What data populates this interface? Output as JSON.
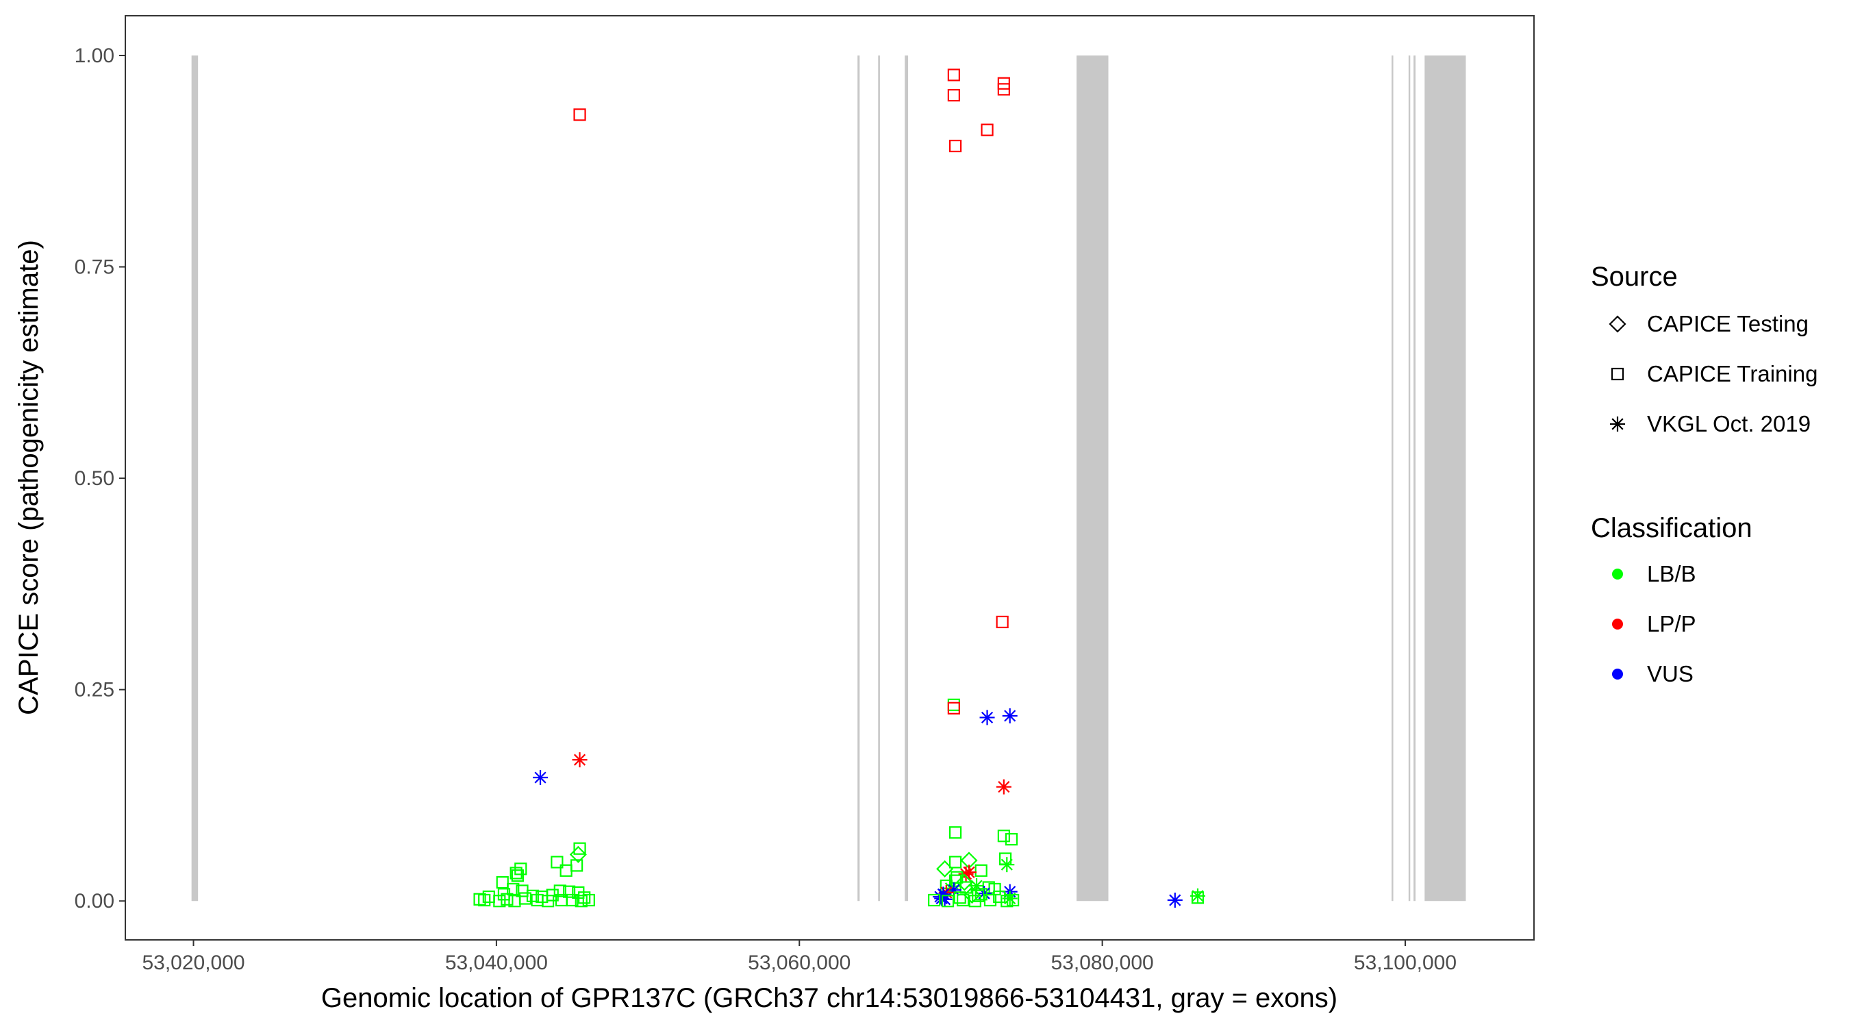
{
  "chart_data": {
    "type": "scatter",
    "title": "",
    "xlabel": "Genomic location of GPR137C (GRCh37 chr14:53019866-53104431, gray = exons)",
    "ylabel": "CAPICE score (pathogenicity estimate)",
    "xlim": [
      53015500,
      53108500
    ],
    "ylim": [
      -0.046,
      1.047
    ],
    "x_ticks": [
      53020000,
      53040000,
      53060000,
      53080000,
      53100000
    ],
    "x_tick_labels": [
      "53,020,000",
      "53,040,000",
      "53,060,000",
      "53,080,000",
      "53,100,000"
    ],
    "y_ticks": [
      0,
      0.25,
      0.5,
      0.75,
      1.0
    ],
    "y_tick_labels": [
      "0.00",
      "0.25",
      "0.50",
      "0.75",
      "1.00"
    ],
    "grid": false,
    "legend_position": "right",
    "exons": [
      [
        53019870,
        53020300
      ],
      [
        53063840,
        53063980
      ],
      [
        53065200,
        53065320
      ],
      [
        53066960,
        53067180
      ],
      [
        53078300,
        53080400
      ],
      [
        53099100,
        53099210
      ],
      [
        53100220,
        53100330
      ],
      [
        53100550,
        53100680
      ],
      [
        53101280,
        53104000
      ]
    ],
    "legends": [
      {
        "title": "Source",
        "entries": [
          {
            "label": "CAPICE Testing",
            "shape": "diamond"
          },
          {
            "label": "CAPICE Training",
            "shape": "square"
          },
          {
            "label": "VKGL Oct. 2019",
            "shape": "asterisk"
          }
        ]
      },
      {
        "title": "Classification",
        "entries": [
          {
            "label": "LB/B",
            "color": "#00ff00"
          },
          {
            "label": "LP/P",
            "color": "#ff0000"
          },
          {
            "label": "VUS",
            "color": "#0000ff"
          }
        ]
      }
    ],
    "colors": {
      "LB/B": "#00ff00",
      "LP/P": "#ff0000",
      "VUS": "#0000ff",
      "exon": "#c8c8c8"
    },
    "points": [
      {
        "x": 53045500,
        "y": 0.93,
        "source": "CAPICE Training",
        "class": "LP/P"
      },
      {
        "x": 53070200,
        "y": 0.977,
        "source": "CAPICE Training",
        "class": "LP/P"
      },
      {
        "x": 53070200,
        "y": 0.953,
        "source": "CAPICE Training",
        "class": "LP/P"
      },
      {
        "x": 53073500,
        "y": 0.967,
        "source": "CAPICE Training",
        "class": "LP/P"
      },
      {
        "x": 53073500,
        "y": 0.96,
        "source": "CAPICE Training",
        "class": "LP/P"
      },
      {
        "x": 53072400,
        "y": 0.912,
        "source": "CAPICE Training",
        "class": "LP/P"
      },
      {
        "x": 53070300,
        "y": 0.893,
        "source": "CAPICE Training",
        "class": "LP/P"
      },
      {
        "x": 53073400,
        "y": 0.33,
        "source": "CAPICE Training",
        "class": "LP/P"
      },
      {
        "x": 53070200,
        "y": 0.232,
        "source": "CAPICE Training",
        "class": "LB/B"
      },
      {
        "x": 53070200,
        "y": 0.228,
        "source": "CAPICE Training",
        "class": "LP/P"
      },
      {
        "x": 53072400,
        "y": 0.217,
        "source": "VKGL Oct. 2019",
        "class": "VUS"
      },
      {
        "x": 53073900,
        "y": 0.219,
        "source": "VKGL Oct. 2019",
        "class": "VUS"
      },
      {
        "x": 53045500,
        "y": 0.167,
        "source": "VKGL Oct. 2019",
        "class": "LP/P"
      },
      {
        "x": 53042900,
        "y": 0.146,
        "source": "VKGL Oct. 2019",
        "class": "VUS"
      },
      {
        "x": 53073500,
        "y": 0.135,
        "source": "VKGL Oct. 2019",
        "class": "LP/P"
      },
      {
        "x": 53070300,
        "y": 0.081,
        "source": "CAPICE Training",
        "class": "LB/B"
      },
      {
        "x": 53073500,
        "y": 0.077,
        "source": "CAPICE Training",
        "class": "LB/B"
      },
      {
        "x": 53074000,
        "y": 0.073,
        "source": "CAPICE Training",
        "class": "LB/B"
      },
      {
        "x": 53045500,
        "y": 0.062,
        "source": "CAPICE Training",
        "class": "LB/B"
      },
      {
        "x": 53045400,
        "y": 0.055,
        "source": "CAPICE Testing",
        "class": "LB/B"
      },
      {
        "x": 53073600,
        "y": 0.05,
        "source": "CAPICE Training",
        "class": "LB/B"
      },
      {
        "x": 53071200,
        "y": 0.048,
        "source": "CAPICE Testing",
        "class": "LB/B"
      },
      {
        "x": 53070300,
        "y": 0.046,
        "source": "CAPICE Training",
        "class": "LB/B"
      },
      {
        "x": 53044000,
        "y": 0.046,
        "source": "CAPICE Training",
        "class": "LB/B"
      },
      {
        "x": 53073700,
        "y": 0.043,
        "source": "VKGL Oct. 2019",
        "class": "LB/B"
      },
      {
        "x": 53045300,
        "y": 0.042,
        "source": "CAPICE Training",
        "class": "LB/B"
      },
      {
        "x": 53069600,
        "y": 0.038,
        "source": "CAPICE Testing",
        "class": "LB/B"
      },
      {
        "x": 53041600,
        "y": 0.038,
        "source": "CAPICE Training",
        "class": "LB/B"
      },
      {
        "x": 53044600,
        "y": 0.036,
        "source": "CAPICE Training",
        "class": "LB/B"
      },
      {
        "x": 53072000,
        "y": 0.036,
        "source": "CAPICE Training",
        "class": "LB/B"
      },
      {
        "x": 53041300,
        "y": 0.033,
        "source": "CAPICE Training",
        "class": "LB/B"
      },
      {
        "x": 53071200,
        "y": 0.034,
        "source": "VKGL Oct. 2019",
        "class": "LP/P"
      },
      {
        "x": 53071000,
        "y": 0.032,
        "source": "VKGL Oct. 2019",
        "class": "LP/P"
      },
      {
        "x": 53041400,
        "y": 0.03,
        "source": "CAPICE Training",
        "class": "LB/B"
      },
      {
        "x": 53070400,
        "y": 0.028,
        "source": "CAPICE Training",
        "class": "LB/B"
      },
      {
        "x": 53070300,
        "y": 0.024,
        "source": "CAPICE Training",
        "class": "LB/B"
      },
      {
        "x": 53040400,
        "y": 0.022,
        "source": "CAPICE Training",
        "class": "LB/B"
      },
      {
        "x": 53070900,
        "y": 0.022,
        "source": "CAPICE Testing",
        "class": "LB/B"
      },
      {
        "x": 53071700,
        "y": 0.018,
        "source": "VKGL Oct. 2019",
        "class": "LB/B"
      },
      {
        "x": 53069700,
        "y": 0.018,
        "source": "CAPICE Training",
        "class": "LB/B"
      },
      {
        "x": 53072500,
        "y": 0.016,
        "source": "CAPICE Training",
        "class": "LB/B"
      },
      {
        "x": 53071000,
        "y": 0.016,
        "source": "CAPICE Training",
        "class": "LB/B"
      },
      {
        "x": 53070000,
        "y": 0.015,
        "source": "VKGL Oct. 2019",
        "class": "LB/B"
      },
      {
        "x": 53072900,
        "y": 0.014,
        "source": "CAPICE Training",
        "class": "LB/B"
      },
      {
        "x": 53041100,
        "y": 0.014,
        "source": "CAPICE Training",
        "class": "LB/B"
      },
      {
        "x": 53070200,
        "y": 0.013,
        "source": "VKGL Oct. 2019",
        "class": "VUS"
      },
      {
        "x": 53041700,
        "y": 0.012,
        "source": "CAPICE Training",
        "class": "LB/B"
      },
      {
        "x": 53044200,
        "y": 0.012,
        "source": "CAPICE Training",
        "class": "LB/B"
      },
      {
        "x": 53044800,
        "y": 0.011,
        "source": "CAPICE Training",
        "class": "LB/B"
      },
      {
        "x": 53073900,
        "y": 0.011,
        "source": "VKGL Oct. 2019",
        "class": "VUS"
      },
      {
        "x": 53045400,
        "y": 0.01,
        "source": "CAPICE Training",
        "class": "LB/B"
      },
      {
        "x": 53069700,
        "y": 0.01,
        "source": "VKGL Oct. 2019",
        "class": "LP/P"
      },
      {
        "x": 53072200,
        "y": 0.009,
        "source": "VKGL Oct. 2019",
        "class": "VUS"
      },
      {
        "x": 53040500,
        "y": 0.008,
        "source": "CAPICE Training",
        "class": "LB/B"
      },
      {
        "x": 53069500,
        "y": 0.008,
        "source": "VKGL Oct. 2019",
        "class": "VUS"
      },
      {
        "x": 53072000,
        "y": 0.008,
        "source": "CAPICE Training",
        "class": "LB/B"
      },
      {
        "x": 53043700,
        "y": 0.007,
        "source": "CAPICE Training",
        "class": "LB/B"
      },
      {
        "x": 53071400,
        "y": 0.007,
        "source": "CAPICE Testing",
        "class": "LB/B"
      },
      {
        "x": 53086300,
        "y": 0.006,
        "source": "VKGL Oct. 2019",
        "class": "LB/B"
      },
      {
        "x": 53042400,
        "y": 0.006,
        "source": "CAPICE Training",
        "class": "LB/B"
      },
      {
        "x": 53071800,
        "y": 0.006,
        "source": "CAPICE Training",
        "class": "LB/B"
      },
      {
        "x": 53043000,
        "y": 0.005,
        "source": "CAPICE Training",
        "class": "LB/B"
      },
      {
        "x": 53069300,
        "y": 0.005,
        "source": "VKGL Oct. 2019",
        "class": "VUS"
      },
      {
        "x": 53039500,
        "y": 0.005,
        "source": "CAPICE Training",
        "class": "LB/B"
      },
      {
        "x": 53073200,
        "y": 0.005,
        "source": "CAPICE Training",
        "class": "LB/B"
      },
      {
        "x": 53086300,
        "y": 0.004,
        "source": "CAPICE Training",
        "class": "LB/B"
      },
      {
        "x": 53070600,
        "y": 0.004,
        "source": "CAPICE Training",
        "class": "LB/B"
      },
      {
        "x": 53045800,
        "y": 0.004,
        "source": "CAPICE Training",
        "class": "LB/B"
      },
      {
        "x": 53041900,
        "y": 0.003,
        "source": "CAPICE Training",
        "class": "LB/B"
      },
      {
        "x": 53069400,
        "y": 0.003,
        "source": "VKGL Oct. 2019",
        "class": "VUS"
      },
      {
        "x": 53073900,
        "y": 0.003,
        "source": "VKGL Oct. 2019",
        "class": "LB/B"
      },
      {
        "x": 53040700,
        "y": 0.002,
        "source": "CAPICE Training",
        "class": "LB/B"
      },
      {
        "x": 53038900,
        "y": 0.002,
        "source": "CAPICE Training",
        "class": "LB/B"
      },
      {
        "x": 53069600,
        "y": 0.002,
        "source": "VKGL Oct. 2019",
        "class": "VUS"
      },
      {
        "x": 53084800,
        "y": 0.001,
        "source": "VKGL Oct. 2019",
        "class": "VUS"
      },
      {
        "x": 53039200,
        "y": 0.001,
        "source": "CAPICE Training",
        "class": "LB/B"
      },
      {
        "x": 53042700,
        "y": 0.001,
        "source": "CAPICE Training",
        "class": "LB/B"
      },
      {
        "x": 53044300,
        "y": 0.001,
        "source": "CAPICE Training",
        "class": "LB/B"
      },
      {
        "x": 53045000,
        "y": 0.001,
        "source": "CAPICE Training",
        "class": "LB/B"
      },
      {
        "x": 53046100,
        "y": 0.001,
        "source": "CAPICE Training",
        "class": "LB/B"
      },
      {
        "x": 53068900,
        "y": 0.001,
        "source": "CAPICE Training",
        "class": "LB/B"
      },
      {
        "x": 53070800,
        "y": 0.001,
        "source": "CAPICE Training",
        "class": "LB/B"
      },
      {
        "x": 53072600,
        "y": 0.001,
        "source": "CAPICE Training",
        "class": "LB/B"
      },
      {
        "x": 53074100,
        "y": 0.001,
        "source": "CAPICE Training",
        "class": "LB/B"
      },
      {
        "x": 53040200,
        "y": 0.0,
        "source": "CAPICE Training",
        "class": "LB/B"
      },
      {
        "x": 53041200,
        "y": 0.0,
        "source": "CAPICE Training",
        "class": "LB/B"
      },
      {
        "x": 53043400,
        "y": 0.0,
        "source": "CAPICE Training",
        "class": "LB/B"
      },
      {
        "x": 53045600,
        "y": 0.0,
        "source": "CAPICE Training",
        "class": "LB/B"
      },
      {
        "x": 53071600,
        "y": 0.0,
        "source": "CAPICE Training",
        "class": "LB/B"
      },
      {
        "x": 53073700,
        "y": 0.0,
        "source": "CAPICE Training",
        "class": "LB/B"
      },
      {
        "x": 53069800,
        "y": 0.0,
        "source": "CAPICE Training",
        "class": "LB/B"
      }
    ]
  }
}
